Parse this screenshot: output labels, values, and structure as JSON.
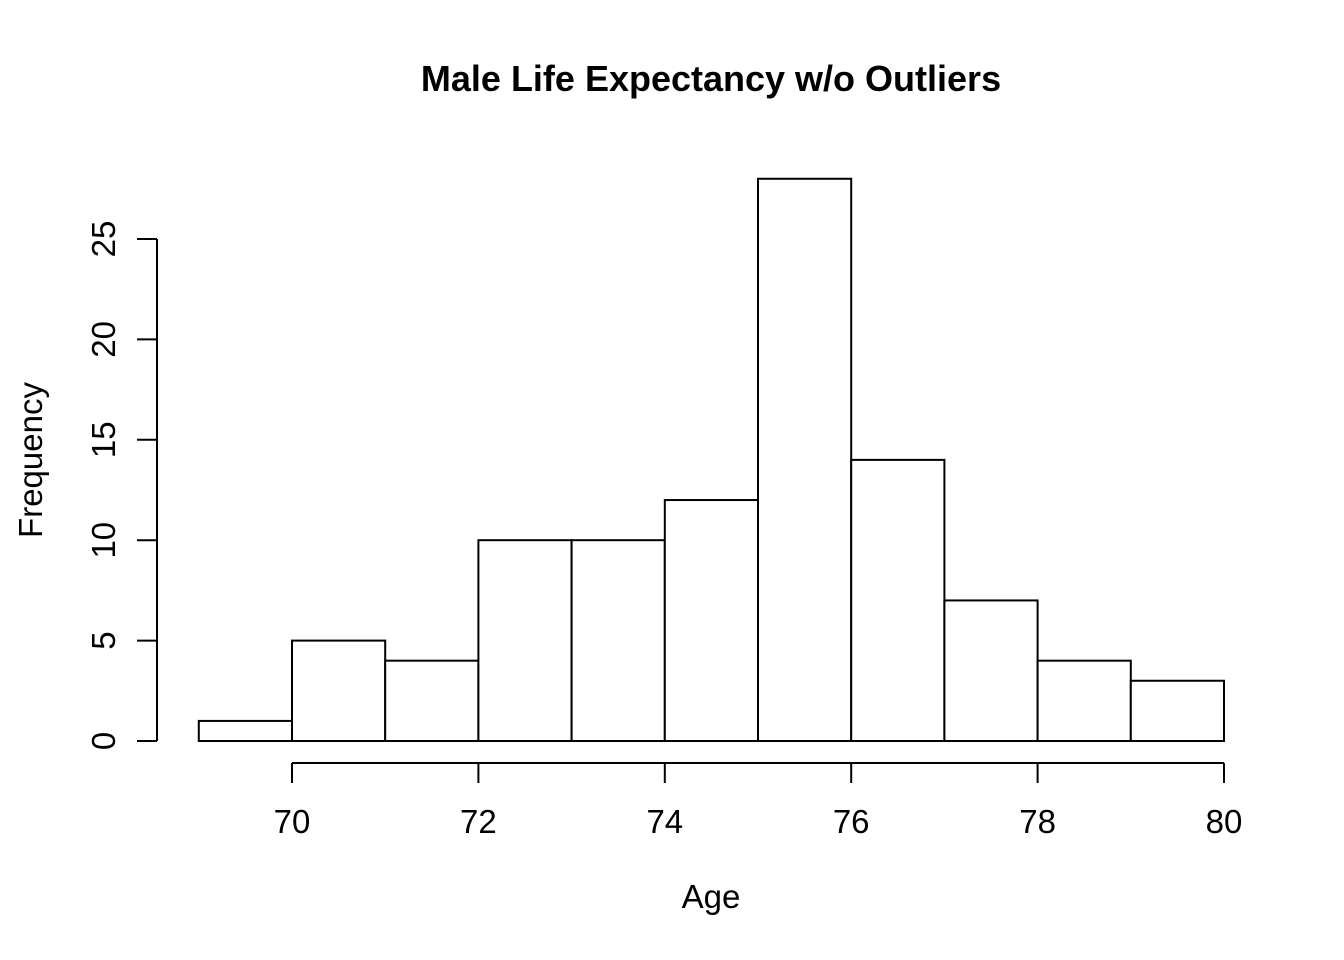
{
  "chart_data": {
    "type": "bar",
    "subtype": "histogram",
    "title": "Male Life Expectancy w/o Outliers",
    "xlabel": "Age",
    "ylabel": "Frequency",
    "bin_width": 1,
    "bins": [
      {
        "start": 69,
        "end": 70,
        "count": 1
      },
      {
        "start": 70,
        "end": 71,
        "count": 5
      },
      {
        "start": 71,
        "end": 72,
        "count": 4
      },
      {
        "start": 72,
        "end": 73,
        "count": 10
      },
      {
        "start": 73,
        "end": 74,
        "count": 10
      },
      {
        "start": 74,
        "end": 75,
        "count": 12
      },
      {
        "start": 75,
        "end": 76,
        "count": 28
      },
      {
        "start": 76,
        "end": 77,
        "count": 14
      },
      {
        "start": 77,
        "end": 78,
        "count": 7
      },
      {
        "start": 78,
        "end": 79,
        "count": 4
      },
      {
        "start": 79,
        "end": 80,
        "count": 3
      }
    ],
    "x_ticks": [
      70,
      72,
      74,
      76,
      78,
      80
    ],
    "y_ticks": [
      0,
      5,
      10,
      15,
      20,
      25
    ],
    "xlim": [
      69,
      80
    ],
    "ylim": [
      0,
      28
    ],
    "grid": false,
    "legend_position": "none",
    "colors": {
      "background": "#ffffff",
      "bar_fill": "#ffffff",
      "bar_border": "#000000",
      "axis": "#000000",
      "text": "#000000"
    }
  }
}
